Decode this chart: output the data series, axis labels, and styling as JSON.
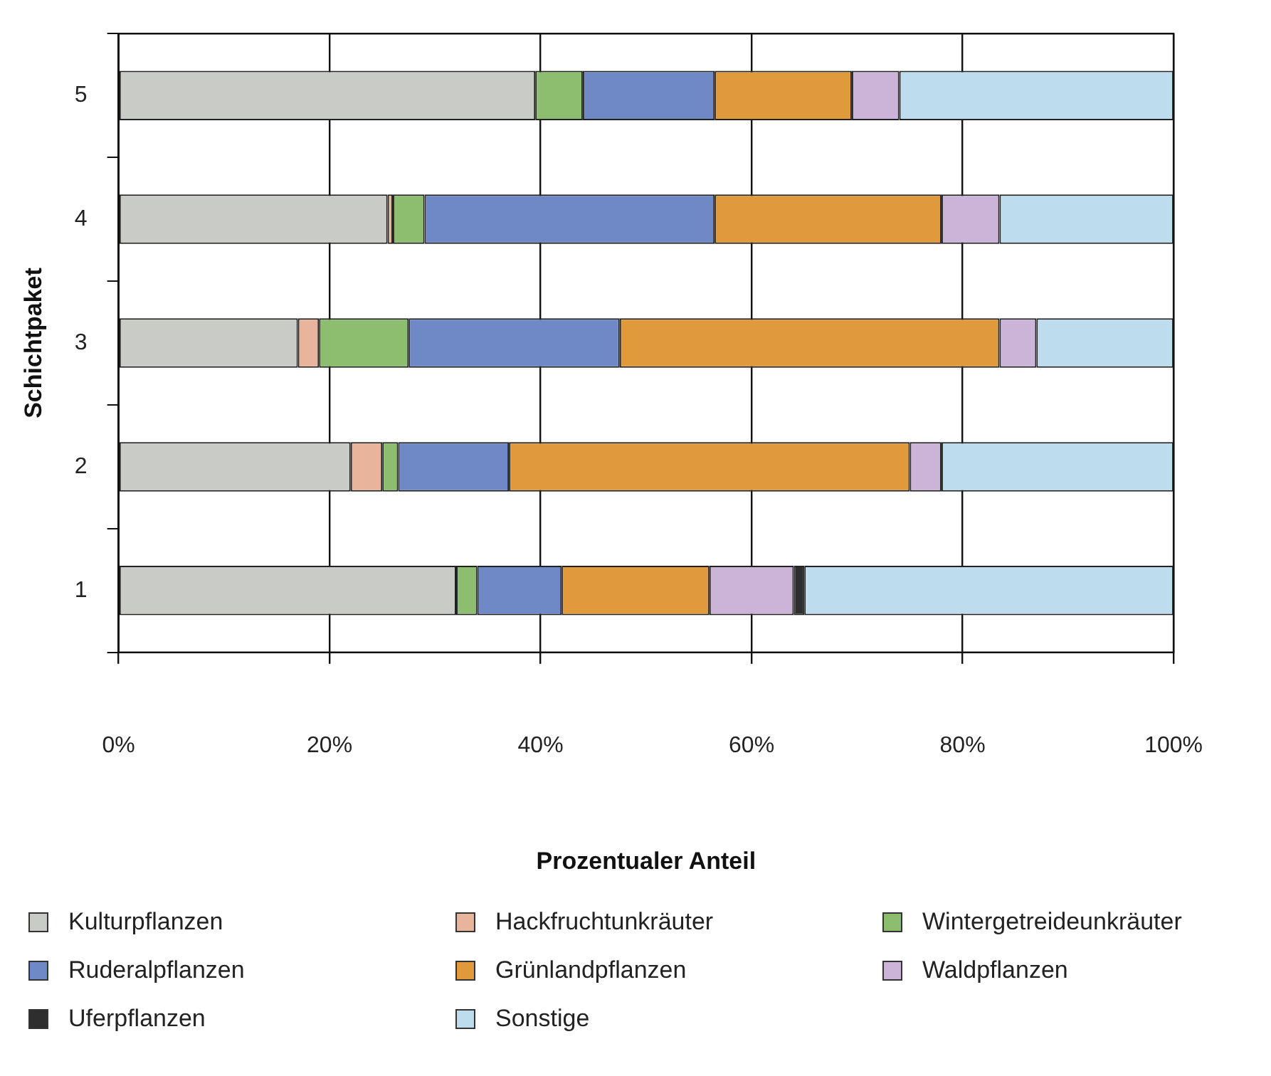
{
  "chart_data": {
    "type": "bar",
    "orientation": "horizontal",
    "stacked": true,
    "xlabel": "Prozentualer Anteil",
    "ylabel": "Schichtpaket",
    "categories": [
      "5",
      "4",
      "3",
      "2",
      "1"
    ],
    "series": [
      {
        "name": "Kulturpflanzen",
        "color": "#c9ccc6",
        "values": [
          39.5,
          25.5,
          17,
          22,
          32
        ]
      },
      {
        "name": "Hackfruchtunkräuter",
        "color": "#e8b49c",
        "values": [
          0,
          0.5,
          2,
          3,
          0
        ]
      },
      {
        "name": "Wintergetreideunkräuter",
        "color": "#8dbd6e",
        "values": [
          4.5,
          3,
          8.5,
          1.5,
          2
        ]
      },
      {
        "name": "Ruderalpflanzen",
        "color": "#6f89c6",
        "values": [
          12.5,
          27.5,
          20,
          10.5,
          8
        ]
      },
      {
        "name": "Grünlandpflanzen",
        "color": "#e09a3c",
        "values": [
          13,
          21.5,
          36,
          38,
          14
        ]
      },
      {
        "name": "Waldpflanzen",
        "color": "#cbb4d8",
        "values": [
          4.5,
          5.5,
          3.5,
          3,
          8
        ]
      },
      {
        "name": "Uferpflanzen",
        "color": "#2e2e2e",
        "values": [
          0,
          0,
          0,
          0,
          1
        ]
      },
      {
        "name": "Sonstige",
        "color": "#bddcee",
        "values": [
          26,
          16.5,
          13,
          22,
          35
        ]
      }
    ],
    "xlim": [
      0,
      100
    ],
    "xticks": [
      {
        "value": 0,
        "label": "0%"
      },
      {
        "value": 20,
        "label": "20%"
      },
      {
        "value": 40,
        "label": "40%"
      },
      {
        "value": 60,
        "label": "60%"
      },
      {
        "value": 80,
        "label": "80%"
      },
      {
        "value": 100,
        "label": "100%"
      }
    ],
    "grid": "x",
    "legend": "bottom"
  }
}
